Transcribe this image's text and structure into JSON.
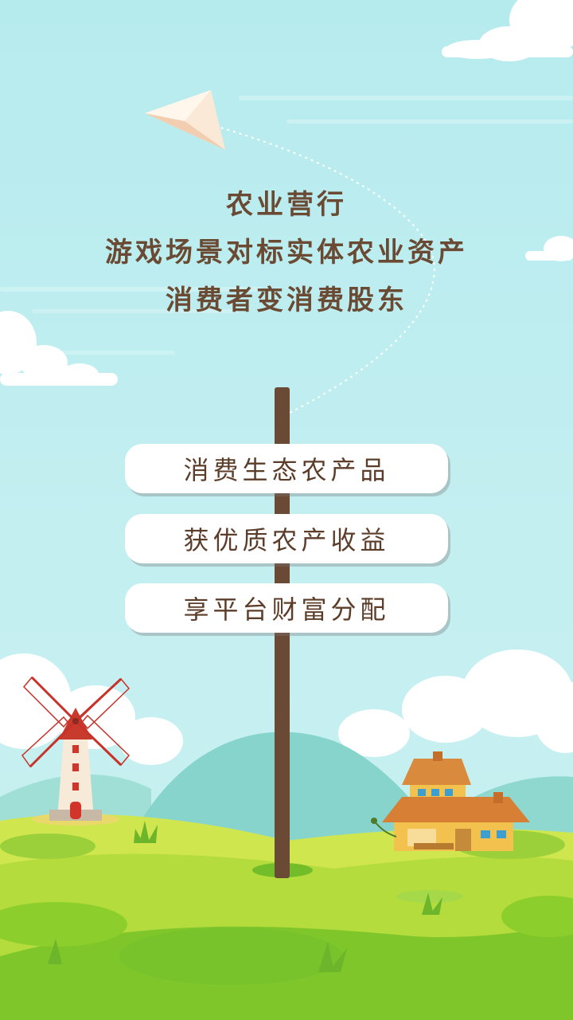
{
  "colors": {
    "sky": "#bfeef1",
    "headline_text": "#6b4a34",
    "sign_background": "#ffffff",
    "sign_text": "#5c3d2a",
    "pole": "#6a4a35",
    "grass_light": "#c6e24c",
    "grass_dark": "#8ccf2d",
    "hill": "#89d6cf"
  },
  "headline": {
    "line1": "农业营行",
    "line2": "游戏场景对标实体农业资产",
    "line3": "消费者变消费股东"
  },
  "signs": [
    {
      "label": "消费生态农产品"
    },
    {
      "label": "获优质农产收益"
    },
    {
      "label": "享平台财富分配"
    }
  ],
  "icons": {
    "plane": "paper-plane-icon",
    "windmill": "windmill-icon",
    "farmhouse": "farmhouse-icon"
  }
}
